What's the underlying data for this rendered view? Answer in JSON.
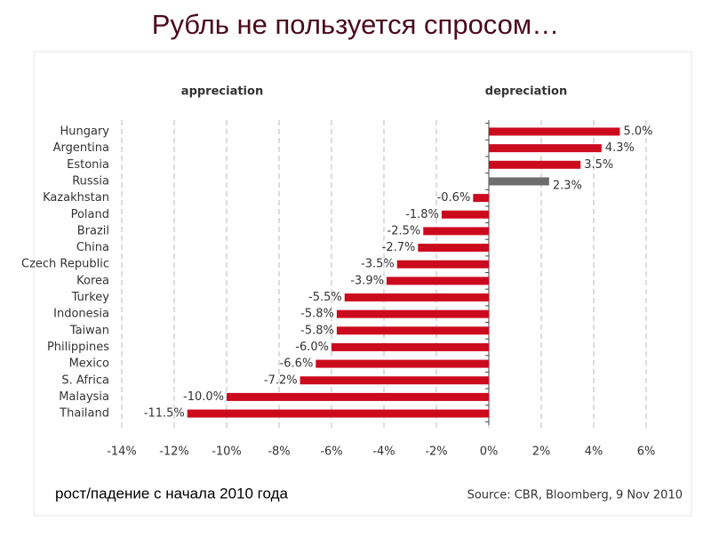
{
  "chart_data": {
    "type": "bar",
    "orientation": "horizontal",
    "title": "Рубль не пользуется спросом…",
    "annotations": [
      "appreciation",
      "depreciation"
    ],
    "subtitle": "рост/падение с начала 2010 года",
    "source": "Source: CBR, Bloomberg, 9 Nov 2010",
    "categories": [
      "Hungary",
      "Argentina",
      "Estonia",
      "Russia",
      "Kazakhstan",
      "Poland",
      "Brazil",
      "China",
      "Czech Republic",
      "Korea",
      "Turkey",
      "Indonesia",
      "Taiwan",
      "Philippines",
      "Mexico",
      "S. Africa",
      "Malaysia",
      "Thailand"
    ],
    "values": [
      5.0,
      4.3,
      3.5,
      2.3,
      -0.6,
      -1.8,
      -2.5,
      -2.7,
      -3.5,
      -3.9,
      -5.5,
      -5.8,
      -5.8,
      -6.0,
      -6.6,
      -7.2,
      -10.0,
      -11.5
    ],
    "value_labels": [
      "5.0%",
      "4.3%",
      "3.5%",
      "2.3%",
      "-0.6%",
      "-1.8%",
      "-2.5%",
      "-2.7%",
      "-3.5%",
      "-3.9%",
      "-5.5%",
      "-5.8%",
      "-5.8%",
      "-6.0%",
      "-6.6%",
      "-7.2%",
      "-10.0%",
      "-11.5%"
    ],
    "colors": [
      "#cc0a1e",
      "#cc0a1e",
      "#cc0a1e",
      "#6d6d6d",
      "#cc0a1e",
      "#cc0a1e",
      "#cc0a1e",
      "#cc0a1e",
      "#cc0a1e",
      "#cc0a1e",
      "#cc0a1e",
      "#cc0a1e",
      "#cc0a1e",
      "#cc0a1e",
      "#cc0a1e",
      "#cc0a1e",
      "#cc0a1e",
      "#cc0a1e"
    ],
    "xlim": [
      -14,
      6
    ],
    "xticks": [
      {
        "value": -14,
        "label": "-14%"
      },
      {
        "value": -12,
        "label": "-12%"
      },
      {
        "value": -10,
        "label": "-10%"
      },
      {
        "value": -8,
        "label": "-8%"
      },
      {
        "value": -6,
        "label": "-6%"
      },
      {
        "value": -4,
        "label": "-4%"
      },
      {
        "value": -2,
        "label": "-2%"
      },
      {
        "value": 0,
        "label": "0%"
      },
      {
        "value": 2,
        "label": "2%"
      },
      {
        "value": 4,
        "label": "4%"
      },
      {
        "value": 6,
        "label": "6%"
      }
    ],
    "grid": true
  }
}
